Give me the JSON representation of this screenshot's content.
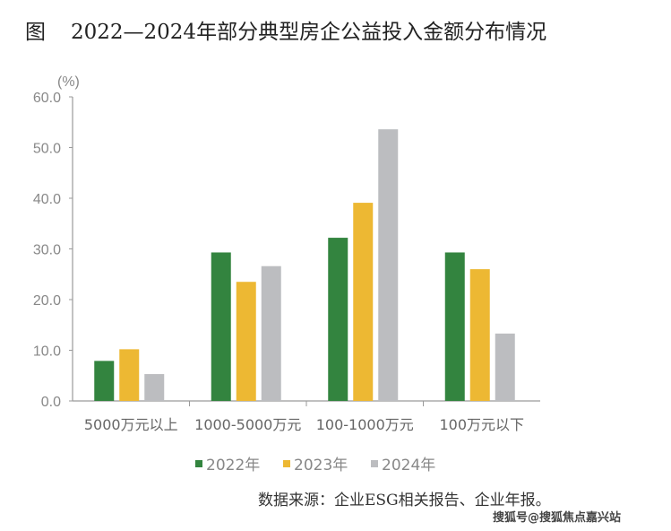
{
  "title": {
    "prefix": "图",
    "text": "2022—2024年部分典型房企公益投入金额分布情况"
  },
  "chart_data": {
    "type": "bar",
    "title": "2022—2024年部分典型房企公益投入金额分布情况",
    "ylabel": "(%)",
    "xlabel": "",
    "ylim": [
      0,
      60
    ],
    "yticks": [
      "0.0",
      "10.0",
      "20.0",
      "30.0",
      "40.0",
      "50.0",
      "60.0"
    ],
    "categories": [
      "5000万元以上",
      "1000-5000万元",
      "100-1000万元",
      "100万元以下"
    ],
    "series": [
      {
        "name": "2022年",
        "color": "#33843f",
        "values": [
          7.9,
          29.3,
          32.2,
          29.3
        ]
      },
      {
        "name": "2023年",
        "color": "#edb833",
        "values": [
          10.2,
          23.5,
          39.1,
          26.0
        ]
      },
      {
        "name": "2024年",
        "color": "#bcbdc0",
        "values": [
          5.3,
          26.6,
          53.6,
          13.3
        ]
      }
    ],
    "grid": false,
    "legend": "bottom"
  },
  "source": "数据来源：企业ESG相关报告、企业年报。",
  "watermark": "搜狐号@搜狐焦点嘉兴站"
}
